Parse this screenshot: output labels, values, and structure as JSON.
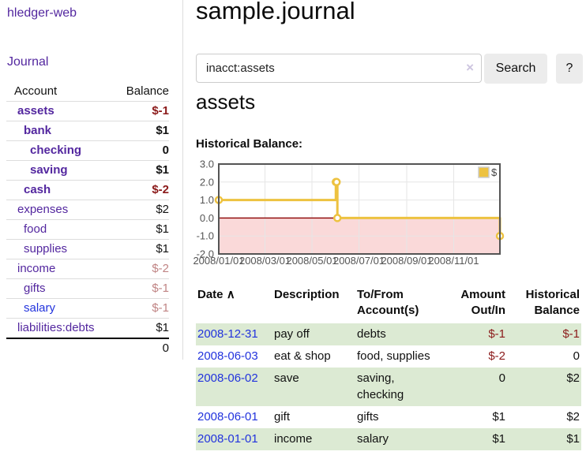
{
  "app": {
    "brand": "hledger-web",
    "nav": {
      "journal": "Journal"
    }
  },
  "sidebar": {
    "columns": {
      "account": "Account",
      "balance": "Balance"
    },
    "accounts": [
      {
        "name": "assets",
        "level": 1,
        "emph": true,
        "balance": "$-1",
        "tone": "neg"
      },
      {
        "name": "bank",
        "level": 2,
        "emph": true,
        "balance": "$1",
        "tone": "pos"
      },
      {
        "name": "checking",
        "level": 3,
        "emph": true,
        "balance": "0",
        "tone": "pos"
      },
      {
        "name": "saving",
        "level": 3,
        "emph": true,
        "balance": "$1",
        "tone": "pos"
      },
      {
        "name": "cash",
        "level": 2,
        "emph": true,
        "balance": "$-2",
        "tone": "neg"
      },
      {
        "name": "expenses",
        "level": 1,
        "emph": false,
        "balance": "$2",
        "tone": "pos"
      },
      {
        "name": "food",
        "level": 2,
        "emph": false,
        "balance": "$1",
        "tone": "pos"
      },
      {
        "name": "supplies",
        "level": 2,
        "emph": false,
        "balance": "$1",
        "tone": "pos"
      },
      {
        "name": "income",
        "level": 1,
        "emph": false,
        "balance": "$-2",
        "tone": "neg-muted"
      },
      {
        "name": "gifts",
        "level": 2,
        "emph": false,
        "balance": "$-1",
        "tone": "neg-muted"
      },
      {
        "name": "salary",
        "level": 2,
        "emph": false,
        "balance": "$-1",
        "tone": "neg-muted",
        "link_style": "fresh"
      },
      {
        "name": "liabilities:debts",
        "level": 1,
        "emph": false,
        "balance": "$1",
        "tone": "pos"
      }
    ],
    "total": "0"
  },
  "main": {
    "title": "sample.journal",
    "search": {
      "value": "inacct:assets",
      "clear_icon": "×",
      "search_button": "Search",
      "help_button": "?"
    },
    "section_title": "assets",
    "chart_heading": "Historical Balance:"
  },
  "chart_data": {
    "type": "line",
    "step": true,
    "title": "Historical Balance",
    "xlabel": "",
    "ylabel": "",
    "series": [
      {
        "name": "$",
        "color": "#edc240",
        "x": [
          "2008-01-01",
          "2008-06-01",
          "2008-06-02",
          "2008-06-03",
          "2008-12-31"
        ],
        "values": [
          1,
          2,
          2,
          0,
          -1
        ]
      }
    ],
    "xlim": [
      "2008-01-01",
      "2008-12-31"
    ],
    "ylim": [
      -2,
      3
    ],
    "yticks": [
      3,
      2,
      1,
      0,
      -1,
      -2
    ],
    "ytick_labels": [
      "3.0",
      "2.0",
      "1.0",
      "0.0",
      "-1.0",
      "-2.0"
    ],
    "xticks": [
      "2008-01-01",
      "2008-03-01",
      "2008-05-01",
      "2008-07-01",
      "2008-09-01",
      "2008-11-01"
    ],
    "xtick_labels": [
      "2008/01/01",
      "2008/03/01",
      "2008/05/01",
      "2008/07/01",
      "2008/09/01",
      "2008/11/01"
    ],
    "grid": true,
    "legend_position": "top-right",
    "colors": {
      "border": "#545454",
      "gridline": "#e6e6e6",
      "tick_text": "#545454",
      "negative_region": "#fad9d9",
      "zero_line": "#8b0000",
      "marker_fill": "#ffffff"
    }
  },
  "register": {
    "headers": {
      "date": "Date",
      "sort_indicator": "∧",
      "description": "Description",
      "accounts": "To/From Account(s)",
      "amount": "Amount Out/In",
      "balance": "Historical Balance"
    },
    "rows": [
      {
        "date": "2008-12-31",
        "description": "pay off",
        "accounts": "debts",
        "amount": "$-1",
        "amount_neg": true,
        "balance": "$-1",
        "balance_neg": true
      },
      {
        "date": "2008-06-03",
        "description": "eat & shop",
        "accounts": "food, supplies",
        "amount": "$-2",
        "amount_neg": true,
        "balance": "0",
        "balance_neg": false
      },
      {
        "date": "2008-06-02",
        "description": "save",
        "accounts": "saving, checking",
        "amount": "0",
        "amount_neg": false,
        "balance": "$2",
        "balance_neg": false
      },
      {
        "date": "2008-06-01",
        "description": "gift",
        "accounts": "gifts",
        "amount": "$1",
        "amount_neg": false,
        "balance": "$2",
        "balance_neg": false
      },
      {
        "date": "2008-01-01",
        "description": "income",
        "accounts": "salary",
        "amount": "$1",
        "amount_neg": false,
        "balance": "$1",
        "balance_neg": false
      }
    ]
  }
}
